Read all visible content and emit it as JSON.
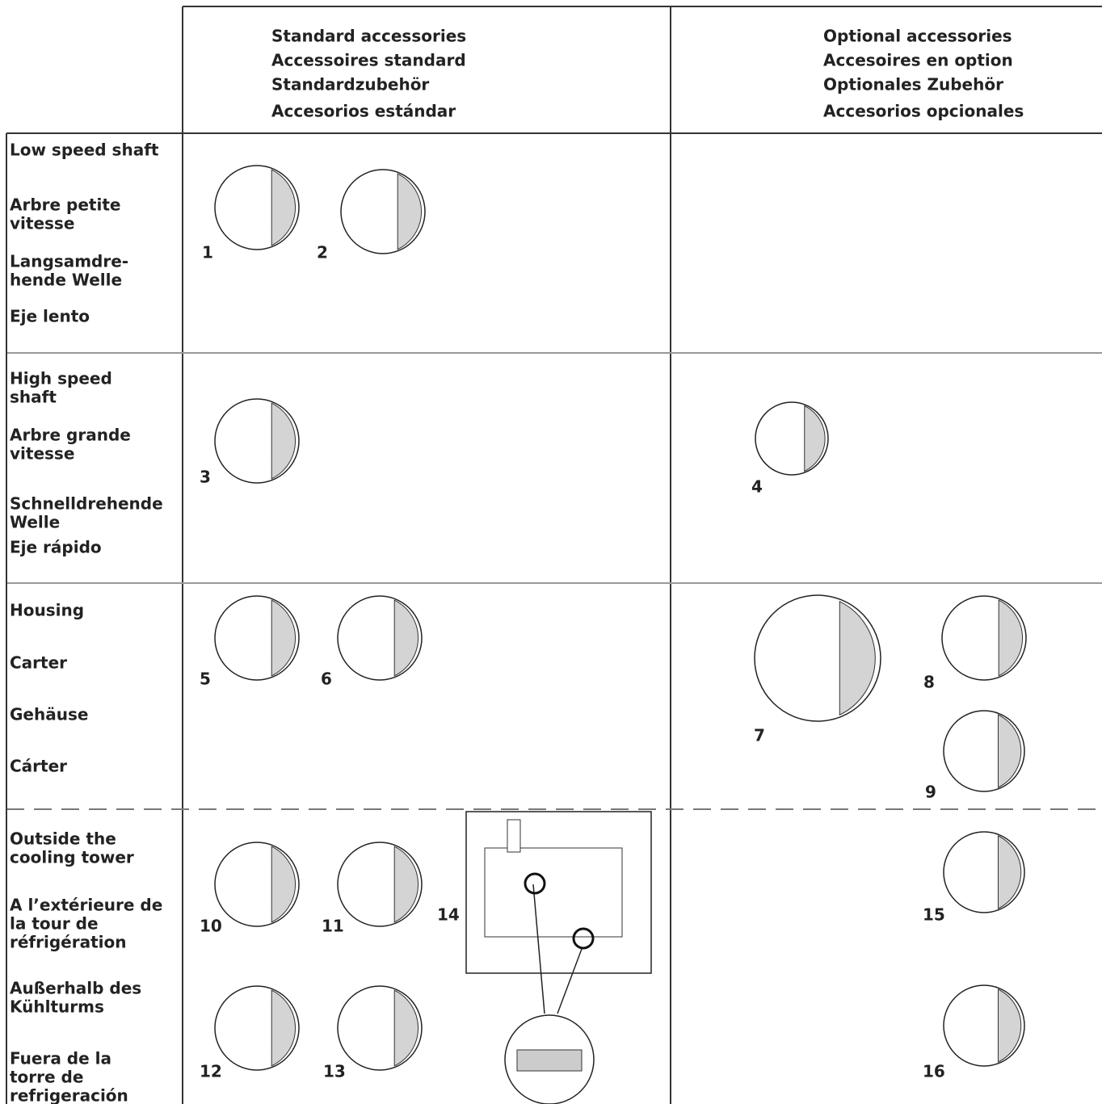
{
  "header": {
    "standard": [
      "Standard accessories",
      "Accessoires standard",
      "Standardzubehör",
      "Accesorios estándar"
    ],
    "optional": [
      "Optional accessories",
      "Accesoires en option",
      "Optionales Zubehör",
      "Accesorios opcionales"
    ]
  },
  "rows": [
    {
      "labels": [
        [
          "Low speed shaft"
        ],
        [
          "Arbre petite",
          "vitesse"
        ],
        [
          "Langsamdre-",
          "hende Welle"
        ],
        [
          "Eje lento"
        ]
      ],
      "standard": [
        1,
        2
      ],
      "optional": []
    },
    {
      "labels": [
        [
          "High speed",
          "shaft"
        ],
        [
          "Arbre grande",
          "vitesse"
        ],
        [
          "Schnelldrehende",
          "Welle"
        ],
        [
          "Eje rápido"
        ]
      ],
      "standard": [
        3
      ],
      "optional": [
        4
      ]
    },
    {
      "labels": [
        [
          "Housing"
        ],
        [
          "Carter"
        ],
        [
          "Gehäuse"
        ],
        [
          "Cárter"
        ]
      ],
      "standard": [
        5,
        6
      ],
      "optional": [
        7,
        8,
        9
      ]
    },
    {
      "labels": [
        [
          "Outside the",
          "cooling tower"
        ],
        [
          "A l’extérieure de",
          "la tour de",
          "réfrigération"
        ],
        [
          "Außerhalb des",
          "Kühlturms"
        ],
        [
          "Fuera de la",
          "torre de",
          "refrigeración"
        ]
      ],
      "standard": [
        10,
        11,
        14,
        12,
        13
      ],
      "optional": [
        15,
        16
      ]
    }
  ]
}
